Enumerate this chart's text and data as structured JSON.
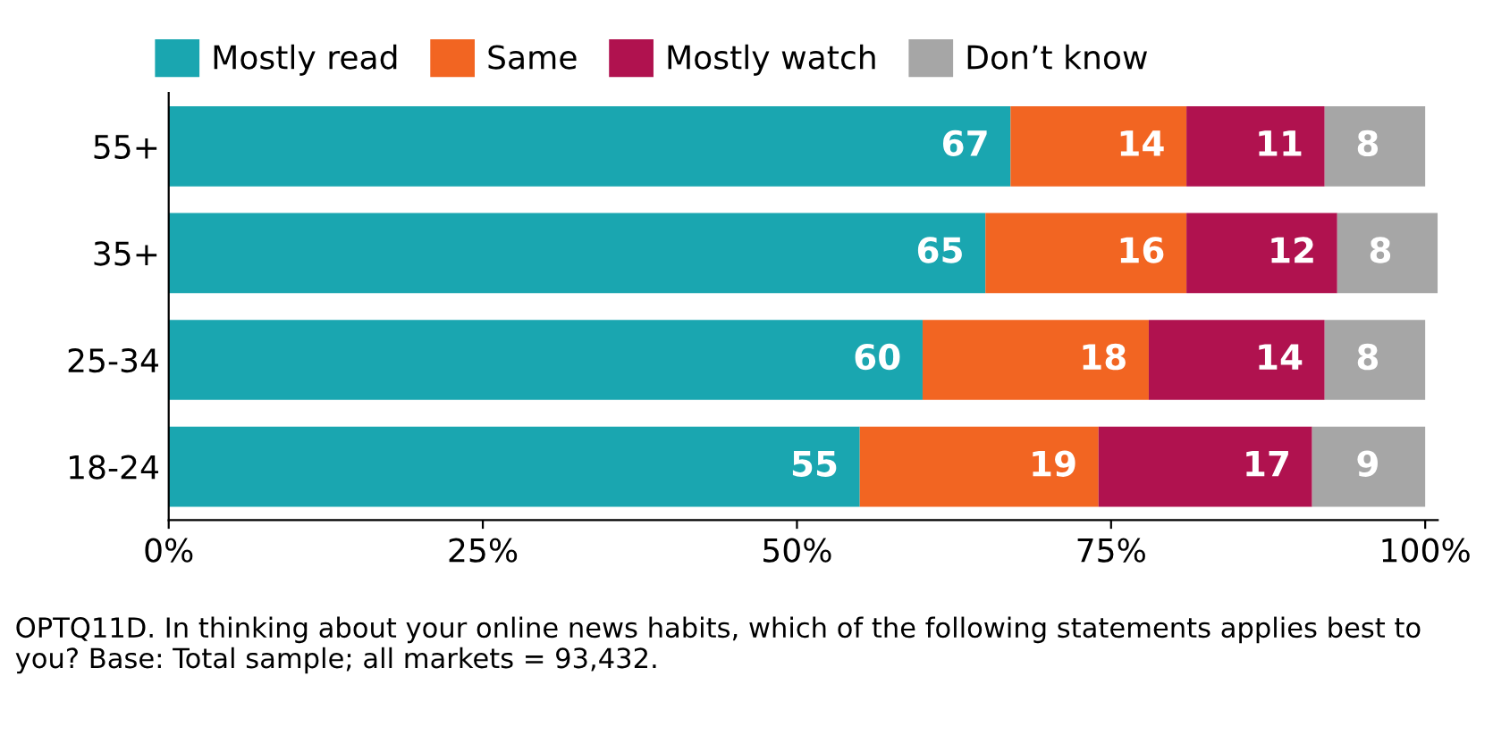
{
  "chart_data": {
    "type": "bar",
    "orientation": "horizontal",
    "stacked": true,
    "categories": [
      "55+",
      "35+",
      "25-34",
      "18-24"
    ],
    "series": [
      {
        "name": "Mostly read",
        "color": "#1aa6b0",
        "values": [
          67,
          65,
          60,
          55
        ]
      },
      {
        "name": "Same",
        "color": "#f26522",
        "values": [
          14,
          16,
          18,
          19
        ]
      },
      {
        "name": "Mostly watch",
        "color": "#b0124f",
        "values": [
          11,
          12,
          14,
          17
        ]
      },
      {
        "name": "Don’t know",
        "color": "#a6a6a6",
        "values": [
          8,
          8,
          8,
          9
        ]
      }
    ],
    "xlim": [
      0,
      101
    ],
    "xticks": [
      {
        "value": 0,
        "label": "0%"
      },
      {
        "value": 25,
        "label": "25%"
      },
      {
        "value": 50,
        "label": "50%"
      },
      {
        "value": 75,
        "label": "75%"
      },
      {
        "value": 100,
        "label": "100%"
      }
    ],
    "data_labels": true,
    "legend": "top",
    "grid": false,
    "annotations": [
      "OPTQ11D. In thinking about your online news habits, which of the following statements applies best to you? Base: Total sample; all markets = 93,432."
    ]
  }
}
